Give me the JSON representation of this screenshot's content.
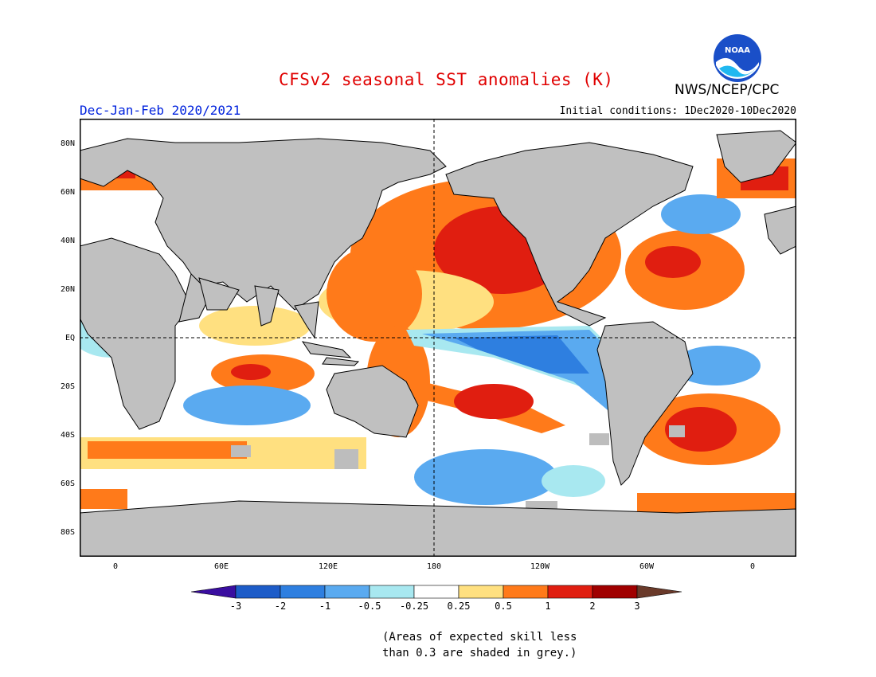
{
  "title": "CFSv2 seasonal SST anomalies (K)",
  "agency": "NWS/NCEP/CPC",
  "logo_text": "NOAA",
  "season": "Dec-Jan-Feb 2020/2021",
  "initial_conditions": "Initial conditions: 1Dec2020-10Dec2020",
  "lat_labels": [
    "80N",
    "60N",
    "40N",
    "20N",
    "EQ",
    "20S",
    "40S",
    "60S",
    "80S"
  ],
  "lon_labels": [
    "0",
    "60E",
    "120E",
    "180",
    "120W",
    "60W",
    "0"
  ],
  "colorbar": {
    "ticks": [
      "-3",
      "-2",
      "-1",
      "-0.5",
      "-0.25",
      "0.25",
      "0.5",
      "1",
      "2",
      "3"
    ],
    "colors": [
      "#3a0ea0",
      "#1d5cc8",
      "#2e7fe0",
      "#5aaaf0",
      "#a8e8f0",
      "#ffffff",
      "#ffe080",
      "#ff7a1a",
      "#e01e10",
      "#a00000",
      "#6a3a2a"
    ]
  },
  "note": {
    "line1": "(Areas of expected skill less",
    "line2": "than 0.3 are shaded in grey.)"
  },
  "colors": {
    "title": "#e00000",
    "season": "#0022dd",
    "land": "#c0c0c0"
  }
}
